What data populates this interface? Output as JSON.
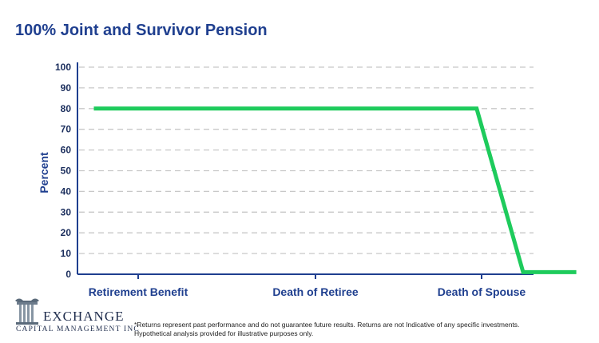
{
  "chart_data": {
    "type": "line",
    "title": "100% Joint and Survivor Pension",
    "ylabel": "Percent",
    "xlabel": "",
    "ylim": [
      0,
      100
    ],
    "yticks": [
      0,
      10,
      20,
      30,
      40,
      50,
      60,
      70,
      80,
      90,
      100
    ],
    "categories": [
      "Retirement Benefit",
      "Death of Retiree",
      "Death of Spouse"
    ],
    "series": [
      {
        "color": "#1ecb5c",
        "points": [
          {
            "x": -0.25,
            "y": 80
          },
          {
            "x": 1.97,
            "y": 80
          },
          {
            "x": 2.25,
            "y": 1
          },
          {
            "x": 2.57,
            "y": 1
          }
        ]
      }
    ],
    "grid": true,
    "legend": "none"
  },
  "logo": {
    "name": "EXCHANGE",
    "subtitle": "CAPITAL MANAGEMENT INC"
  },
  "disclaimer": {
    "line1": "*Returns represent past performance and do not guarantee future results. Returns are not Indicative of any specific investments.",
    "line2": "Hypothetical analysis provided for illustrative purposes only."
  },
  "colors": {
    "title": "#1f3f8f",
    "axis": "#1f3f8f",
    "grid": "#c8c8c8",
    "line": "#1ecb5c"
  }
}
